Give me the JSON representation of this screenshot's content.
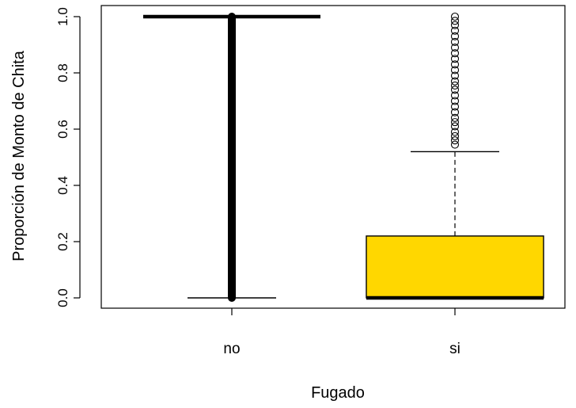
{
  "chart_data": {
    "type": "boxplot",
    "xlabel": "Fugado",
    "ylabel": "Proporción de Monto de Chita",
    "ylim": [
      0.0,
      1.0
    ],
    "yticks": [
      "0.0",
      "0.2",
      "0.4",
      "0.6",
      "0.8",
      "1.0"
    ],
    "grid": false,
    "categories": [
      "no",
      "si"
    ],
    "boxes": [
      {
        "category": "no",
        "min": 0.0,
        "q1": 1.0,
        "median": 1.0,
        "q3": 1.0,
        "max": 1.0,
        "fill": "#FFFFFF",
        "outliers_range": [
          0.0,
          1.0
        ]
      },
      {
        "category": "si",
        "min": 0.0,
        "q1": 0.0,
        "median": 0.0,
        "q3": 0.22,
        "max": 0.52,
        "fill": "#FFD700",
        "outliers": [
          0.545,
          0.56,
          0.575,
          0.59,
          0.61,
          0.625,
          0.64,
          0.66,
          0.68,
          0.7,
          0.72,
          0.74,
          0.755,
          0.77,
          0.79,
          0.81,
          0.83,
          0.85,
          0.87,
          0.89,
          0.91,
          0.93,
          0.95,
          0.97,
          0.985,
          1.0
        ]
      }
    ]
  }
}
